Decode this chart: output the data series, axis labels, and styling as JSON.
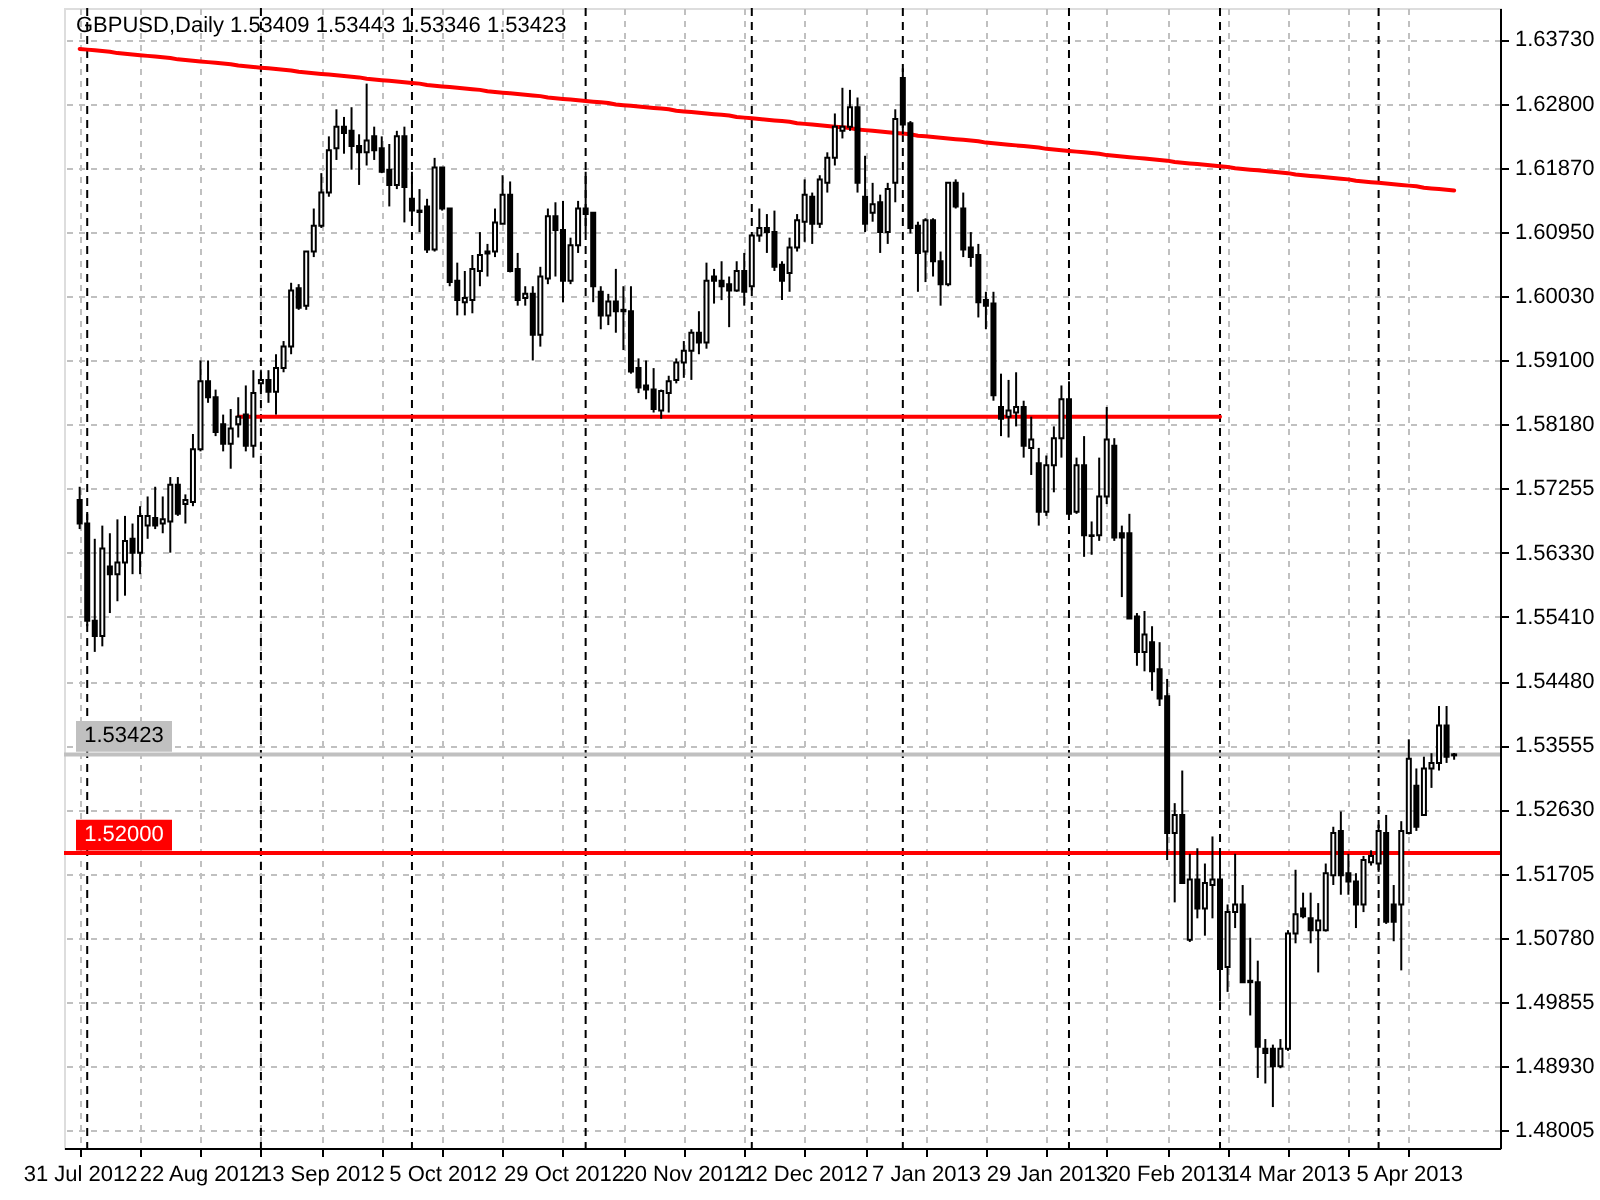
{
  "chart_data": {
    "type": "candlestick",
    "title": "GBPUSD,Daily 1.53409 1.53443 1.53346 1.53423",
    "categories": [
      "31 Jul 2012",
      null,
      null,
      null,
      null,
      null,
      null,
      null,
      null,
      null,
      null,
      null,
      null,
      null,
      null,
      null,
      "22 Aug 2012",
      null,
      null,
      null,
      null,
      null,
      null,
      null,
      null,
      null,
      null,
      null,
      null,
      null,
      null,
      null,
      "13 Sep 2012",
      null,
      null,
      null,
      null,
      null,
      null,
      null,
      null,
      null,
      null,
      null,
      null,
      null,
      null,
      null,
      "5 Oct 2012",
      null,
      null,
      null,
      null,
      null,
      null,
      null,
      null,
      null,
      null,
      null,
      null,
      null,
      null,
      null,
      "29 Oct 2012",
      null,
      null,
      null,
      null,
      null,
      null,
      null,
      null,
      null,
      null,
      null,
      null,
      null,
      null,
      null,
      "20 Nov 2012",
      null,
      null,
      null,
      null,
      null,
      null,
      null,
      null,
      null,
      null,
      null,
      null,
      null,
      null,
      null,
      "12 Dec 2012",
      null,
      null,
      null,
      null,
      null,
      null,
      null,
      null,
      null,
      null,
      null,
      null,
      null,
      null,
      null,
      "7 Jan 2013",
      null,
      null,
      null,
      null,
      null,
      null,
      null,
      null,
      null,
      null,
      null,
      null,
      null,
      null,
      null,
      "29 Jan 2013",
      null,
      null,
      null,
      null,
      null,
      null,
      null,
      null,
      null,
      null,
      null,
      null,
      null,
      null,
      null,
      "20 Feb 2013",
      null,
      null,
      null,
      null,
      null,
      null,
      null,
      null,
      null,
      null,
      null,
      null,
      null,
      null,
      null,
      "14 Mar 2013",
      null,
      null,
      null,
      null,
      null,
      null,
      null,
      null,
      null,
      null,
      null,
      null,
      null,
      null,
      null,
      "5 Apr 2013",
      null,
      null,
      null,
      null,
      null,
      null
    ],
    "ylim": [
      1.4775,
      1.6418
    ],
    "yticks": [
      1.48005,
      {
        "value": 1.4893,
        "label": "1.48930"
      },
      1.49855,
      {
        "value": 1.5078,
        "label": "1.50780"
      },
      1.51705,
      {
        "value": 1.5263,
        "label": "1.52630"
      },
      1.53555,
      {
        "value": 1.5448,
        "label": "1.54480"
      },
      {
        "value": 1.5541,
        "label": "1.55410"
      },
      {
        "value": 1.5633,
        "label": "1.56330"
      },
      1.57255,
      {
        "value": 1.5818,
        "label": "1.58180"
      },
      {
        "value": 1.591,
        "label": "1.59100"
      },
      {
        "value": 1.6003,
        "label": "1.60030"
      },
      {
        "value": 1.6095,
        "label": "1.60950"
      },
      {
        "value": 1.6187,
        "label": "1.61870"
      },
      {
        "value": 1.628,
        "label": "1.62800"
      },
      {
        "value": 1.6373,
        "label": "1.63730"
      }
    ],
    "grid": true,
    "ref_lines": [
      {
        "axis": "y",
        "value": 1.52,
        "label": "1.52000",
        "color": "#ff0000"
      },
      {
        "axis": "y",
        "value": 1.53423,
        "label": "1.53423",
        "color": "#c0c0c0"
      }
    ],
    "series": [
      {
        "type": "line",
        "color": "#ff0000",
        "values": [
          1.6359,
          1.6358,
          1.6357,
          1.6356,
          1.6355,
          1.6353,
          1.6352,
          1.6351,
          1.635,
          1.6349,
          1.6348,
          1.6347,
          1.6346,
          1.6344,
          1.6343,
          1.6342,
          1.6341,
          1.634,
          1.6339,
          1.6338,
          1.6337,
          1.6335,
          1.6334,
          1.6333,
          1.6332,
          1.6331,
          1.633,
          1.6329,
          1.6328,
          1.6326,
          1.6325,
          1.6324,
          1.6323,
          1.6322,
          1.6321,
          1.632,
          1.6319,
          1.6318,
          1.6316,
          1.6315,
          1.6314,
          1.6313,
          1.6312,
          1.6311,
          1.631,
          1.6309,
          1.6307,
          1.6306,
          1.6305,
          1.6304,
          1.6303,
          1.6302,
          1.6301,
          1.63,
          1.6298,
          1.6297,
          1.6296,
          1.6295,
          1.6294,
          1.6293,
          1.6292,
          1.6291,
          1.6289,
          1.6288,
          1.6287,
          1.6286,
          1.6285,
          1.6284,
          1.6283,
          1.6282,
          1.6281,
          1.6279,
          1.6278,
          1.6277,
          1.6276,
          1.6275,
          1.6274,
          1.6273,
          1.6272,
          1.627,
          1.6269,
          1.6268,
          1.6267,
          1.6266,
          1.6265,
          1.6264,
          1.6263,
          1.6261,
          1.626,
          1.6259,
          1.6258,
          1.6257,
          1.6256,
          1.6255,
          1.6254,
          1.6252,
          1.6251,
          1.625,
          1.6249,
          1.6248,
          1.6247,
          1.6246,
          1.6245,
          1.6243,
          1.6242,
          1.6241,
          1.624,
          1.6239,
          1.6238,
          1.6237,
          1.6236,
          1.6234,
          1.6233,
          1.6232,
          1.6231,
          1.623,
          1.6229,
          1.6228,
          1.6227,
          1.6226,
          1.6224,
          1.6223,
          1.6222,
          1.6221,
          1.622,
          1.6219,
          1.6218,
          1.6217,
          1.6215,
          1.6214,
          1.6213,
          1.6212,
          1.6211,
          1.621,
          1.6209,
          1.6208,
          1.6206,
          1.6205,
          1.6204,
          1.6203,
          1.6202,
          1.6201,
          1.62,
          1.6199,
          1.6198,
          1.6196,
          1.6195,
          1.6194,
          1.6193,
          1.6192,
          1.6191,
          1.619,
          1.6189,
          1.6187,
          1.6186,
          1.6185,
          1.6184,
          1.6183,
          1.6182,
          1.6181,
          1.618,
          1.6178,
          1.6177,
          1.6176,
          1.6175,
          1.6174,
          1.6173,
          1.6172,
          1.6171,
          1.6169,
          1.6168,
          1.6167,
          1.6166,
          1.6165,
          1.6164,
          1.6163,
          1.6162,
          1.6161,
          1.6159,
          1.6158,
          1.6157,
          1.6156,
          1.6155
        ]
      },
      {
        "type": "line",
        "color": "#ff0000",
        "values": [
          null,
          null,
          null,
          null,
          null,
          null,
          null,
          null,
          null,
          null,
          null,
          null,
          null,
          null,
          null,
          null,
          null,
          null,
          null,
          null,
          null,
          1.5829,
          1.5829,
          1.5829,
          1.5829,
          1.5829,
          1.5829,
          1.5829,
          1.5829,
          1.5829,
          1.5829,
          1.5829,
          1.5829,
          1.5829,
          1.5829,
          1.5829,
          1.5829,
          1.5829,
          1.5829,
          1.5829,
          1.5829,
          1.5829,
          1.5829,
          1.5829,
          1.5829,
          1.5829,
          1.5829,
          1.5829,
          1.5829,
          1.5829,
          1.5829,
          1.5829,
          1.5829,
          1.5829,
          1.5829,
          1.5829,
          1.5829,
          1.5829,
          1.5829,
          1.5829,
          1.5829,
          1.5829,
          1.5829,
          1.5829,
          1.5829,
          1.5829,
          1.5829,
          1.5829,
          1.5829,
          1.5829,
          1.5829,
          1.5829,
          1.5829,
          1.5829,
          1.5829,
          1.5829,
          1.5829,
          1.5829,
          1.5829,
          1.5829,
          1.5829,
          1.5829,
          1.5829,
          1.5829,
          1.5829,
          1.5829,
          1.5829,
          1.5829,
          1.5829,
          1.5829,
          1.5829,
          1.5829,
          1.5829,
          1.5829,
          1.5829,
          1.5829,
          1.5829,
          1.5829,
          1.5829,
          1.5829,
          1.5829,
          1.5829,
          1.5829,
          1.5829,
          1.5829,
          1.5829,
          1.5829,
          1.5829,
          1.5829,
          1.5829,
          1.5829,
          1.5829,
          1.5829,
          1.5829,
          1.5829,
          1.5829,
          1.5829,
          1.5829,
          1.5829,
          1.5829,
          1.5829,
          1.5829,
          1.5829,
          1.5829,
          1.5829,
          1.5829,
          1.5829,
          1.5829,
          1.5829,
          1.5829,
          1.5829,
          1.5829,
          1.5829,
          1.5829,
          1.5829,
          1.5829,
          1.5829,
          1.5829,
          1.5829,
          1.5829,
          1.5829,
          1.5829,
          1.5829,
          1.5829,
          1.5829,
          1.5829,
          1.5829,
          1.5829,
          1.5829,
          1.5829,
          1.5829,
          1.5829,
          null,
          null,
          null,
          null,
          null,
          null,
          null,
          null,
          null,
          null,
          null,
          null,
          null,
          null,
          null,
          null,
          null,
          null,
          null,
          null,
          null,
          null,
          null,
          null,
          null,
          null,
          null,
          null,
          null,
          null,
          null
        ]
      },
      {
        "color": "#000000",
        "ohlc": [
          [
            1.5709,
            1.5728,
            1.5667,
            1.5675
          ],
          [
            1.5675,
            1.5689,
            1.5527,
            1.5535
          ],
          [
            1.5535,
            1.5653,
            1.549,
            1.5513
          ],
          [
            1.5513,
            1.5672,
            1.5498,
            1.5639
          ],
          [
            1.5613,
            1.5661,
            1.5546,
            1.5602
          ],
          [
            1.5602,
            1.5681,
            1.5563,
            1.5619
          ],
          [
            1.5619,
            1.5686,
            1.5571,
            1.565
          ],
          [
            1.5653,
            1.5675,
            1.5602,
            1.5633
          ],
          [
            1.5633,
            1.57,
            1.5602,
            1.5686
          ],
          [
            1.5672,
            1.5714,
            1.5653,
            1.5686
          ],
          [
            1.5683,
            1.5728,
            1.5667,
            1.5672
          ],
          [
            1.5675,
            1.5714,
            1.5661,
            1.5681
          ],
          [
            1.5678,
            1.5742,
            1.5633,
            1.5731
          ],
          [
            1.5731,
            1.5742,
            1.5686,
            1.5689
          ],
          [
            1.5703,
            1.5717,
            1.5675,
            1.5709
          ],
          [
            1.5706,
            1.5804,
            1.57,
            1.5782
          ],
          [
            1.5782,
            1.591,
            1.5779,
            1.588
          ],
          [
            1.588,
            1.591,
            1.5849,
            1.5857
          ],
          [
            1.5857,
            1.5868,
            1.5801,
            1.5807
          ],
          [
            1.5818,
            1.5832,
            1.5779,
            1.579
          ],
          [
            1.579,
            1.584,
            1.5754,
            1.5812
          ],
          [
            1.5818,
            1.5857,
            1.5799,
            1.5829
          ],
          [
            1.5832,
            1.5874,
            1.5779,
            1.5787
          ],
          [
            1.5787,
            1.5896,
            1.577,
            1.5863
          ],
          [
            1.5877,
            1.5896,
            1.5865,
            1.5882
          ],
          [
            1.5882,
            1.5896,
            1.5849,
            1.5865
          ],
          [
            1.5865,
            1.5919,
            1.5832,
            1.5899
          ],
          [
            1.5899,
            1.5938,
            1.5893,
            1.593
          ],
          [
            1.593,
            1.6022,
            1.5919,
            1.6011
          ],
          [
            1.6014,
            1.602,
            1.5983,
            1.5986
          ],
          [
            1.5989,
            1.6067,
            1.5983,
            1.6067
          ],
          [
            1.6067,
            1.6129,
            1.6059,
            1.6104
          ],
          [
            1.6104,
            1.618,
            1.6101,
            1.6152
          ],
          [
            1.6152,
            1.6233,
            1.6146,
            1.6213
          ],
          [
            1.6216,
            1.6272,
            1.6199,
            1.6247
          ],
          [
            1.6247,
            1.6261,
            1.6208,
            1.6238
          ],
          [
            1.6241,
            1.6275,
            1.6185,
            1.6219
          ],
          [
            1.6219,
            1.6236,
            1.6163,
            1.621
          ],
          [
            1.621,
            1.6309,
            1.6191,
            1.6227
          ],
          [
            1.6233,
            1.6247,
            1.6199,
            1.6213
          ],
          [
            1.6216,
            1.6233,
            1.618,
            1.6182
          ],
          [
            1.6185,
            1.6222,
            1.6132,
            1.6163
          ],
          [
            1.6163,
            1.6241,
            1.6157,
            1.6233
          ],
          [
            1.6233,
            1.6247,
            1.6109,
            1.616
          ],
          [
            1.6143,
            1.6182,
            1.6107,
            1.6126
          ],
          [
            1.6126,
            1.6157,
            1.6095,
            1.6124
          ],
          [
            1.6132,
            1.6143,
            1.6065,
            1.607
          ],
          [
            1.607,
            1.6202,
            1.6067,
            1.6188
          ],
          [
            1.6188,
            1.6188,
            1.6126,
            1.6129
          ],
          [
            1.6129,
            1.6129,
            1.6017,
            1.6023
          ],
          [
            1.6025,
            1.6051,
            1.5975,
            1.5997
          ],
          [
            1.5994,
            1.6039,
            1.5975,
            1.6
          ],
          [
            1.5997,
            1.6062,
            1.5978,
            1.6042
          ],
          [
            1.6039,
            1.6095,
            1.6017,
            1.6062
          ],
          [
            1.6064,
            1.6078,
            1.6031,
            1.6067
          ],
          [
            1.6067,
            1.6129,
            1.6059,
            1.6109
          ],
          [
            1.6107,
            1.6177,
            1.6107,
            1.6149
          ],
          [
            1.6149,
            1.6168,
            1.6037,
            1.6039
          ],
          [
            1.6042,
            1.6065,
            1.5989,
            1.5997
          ],
          [
            1.6,
            1.6017,
            1.5989,
            1.6006
          ],
          [
            1.6006,
            1.6017,
            1.591,
            1.5947
          ],
          [
            1.5947,
            1.6045,
            1.593,
            1.6031
          ],
          [
            1.6028,
            1.6129,
            1.602,
            1.6118
          ],
          [
            1.6118,
            1.6138,
            1.6031,
            1.6098
          ],
          [
            1.6098,
            1.614,
            1.5994,
            1.6025
          ],
          [
            1.6025,
            1.6087,
            1.602,
            1.6076
          ],
          [
            1.6076,
            1.614,
            1.6065,
            1.6129
          ],
          [
            1.6129,
            1.6182,
            1.6095,
            1.6121
          ],
          [
            1.6123,
            1.6123,
            1.5994,
            1.6017
          ],
          [
            1.6009,
            1.6017,
            1.5955,
            1.5975
          ],
          [
            1.5975,
            1.6006,
            1.5961,
            1.5995
          ],
          [
            1.5995,
            1.6042,
            1.595,
            1.5981
          ],
          [
            1.5981,
            1.6017,
            1.5925,
            1.5983
          ],
          [
            1.5981,
            1.6017,
            1.5891,
            1.5894
          ],
          [
            1.5899,
            1.5913,
            1.5863,
            1.5871
          ],
          [
            1.5874,
            1.591,
            1.5854,
            1.5868
          ],
          [
            1.5868,
            1.5899,
            1.5835,
            1.584
          ],
          [
            1.5838,
            1.5868,
            1.5826,
            1.5866
          ],
          [
            1.5863,
            1.5888,
            1.5835,
            1.588
          ],
          [
            1.5882,
            1.5913,
            1.5877,
            1.5907
          ],
          [
            1.5907,
            1.5938,
            1.5885,
            1.5924
          ],
          [
            1.5924,
            1.5955,
            1.5882,
            1.595
          ],
          [
            1.595,
            1.5981,
            1.5919,
            1.5936
          ],
          [
            1.5936,
            1.6051,
            1.5927,
            1.6025
          ],
          [
            1.6031,
            1.6042,
            1.5992,
            1.6025
          ],
          [
            1.6025,
            1.6053,
            1.5997,
            1.6017
          ],
          [
            1.602,
            1.6031,
            1.5958,
            1.6011
          ],
          [
            1.6011,
            1.6053,
            1.6009,
            1.6039
          ],
          [
            1.6039,
            1.6065,
            1.5989,
            1.6009
          ],
          [
            1.6017,
            1.6092,
            1.6011,
            1.609
          ],
          [
            1.609,
            1.6129,
            1.6081,
            1.6101
          ],
          [
            1.6101,
            1.6121,
            1.6065,
            1.6095
          ],
          [
            1.6095,
            1.6126,
            1.6039,
            1.6045
          ],
          [
            1.6048,
            1.6053,
            1.5997,
            1.6025
          ],
          [
            1.6036,
            1.6087,
            1.6009,
            1.6073
          ],
          [
            1.6073,
            1.6121,
            1.6067,
            1.6112
          ],
          [
            1.611,
            1.6171,
            1.6081,
            1.6149
          ],
          [
            1.6146,
            1.6152,
            1.6078,
            1.6107
          ],
          [
            1.6107,
            1.6177,
            1.6101,
            1.6171
          ],
          [
            1.6166,
            1.621,
            1.6152,
            1.6202
          ],
          [
            1.6202,
            1.6266,
            1.6191,
            1.6247
          ],
          [
            1.6241,
            1.6303,
            1.623,
            1.6247
          ],
          [
            1.6247,
            1.63,
            1.6241,
            1.6275
          ],
          [
            1.6275,
            1.6289,
            1.6152,
            1.6166
          ],
          [
            1.6146,
            1.6205,
            1.6095,
            1.6107
          ],
          [
            1.6123,
            1.6166,
            1.611,
            1.6135
          ],
          [
            1.6138,
            1.6149,
            1.6065,
            1.6095
          ],
          [
            1.6095,
            1.6166,
            1.6078,
            1.6157
          ],
          [
            1.6166,
            1.6272,
            1.6138,
            1.6258
          ],
          [
            1.6317,
            1.6331,
            1.6236,
            1.625
          ],
          [
            1.6252,
            1.6255,
            1.6093,
            1.6101
          ],
          [
            1.6104,
            1.611,
            1.6009,
            1.6065
          ],
          [
            1.6067,
            1.6115,
            1.6023,
            1.6112
          ],
          [
            1.6112,
            1.6115,
            1.6031,
            1.6053
          ],
          [
            1.6053,
            1.6067,
            1.5989,
            1.602
          ],
          [
            1.602,
            1.6166,
            1.6017,
            1.6166
          ],
          [
            1.6166,
            1.6171,
            1.6129,
            1.6132
          ],
          [
            1.6129,
            1.6152,
            1.6059,
            1.607
          ],
          [
            1.6073,
            1.6095,
            1.6045,
            1.6059
          ],
          [
            1.6062,
            1.6078,
            1.5972,
            1.5994
          ],
          [
            1.5997,
            1.6009,
            1.5955,
            1.5989
          ],
          [
            1.5992,
            1.6009,
            1.5852,
            1.586
          ],
          [
            1.5843,
            1.5891,
            1.5801,
            1.5826
          ],
          [
            1.5829,
            1.5882,
            1.5799,
            1.5838
          ],
          [
            1.5835,
            1.5893,
            1.5815,
            1.5843
          ],
          [
            1.5843,
            1.5852,
            1.577,
            1.5787
          ],
          [
            1.5784,
            1.5829,
            1.5745,
            1.5796
          ],
          [
            1.5762,
            1.5784,
            1.5672,
            1.5692
          ],
          [
            1.5692,
            1.5773,
            1.5686,
            1.5759
          ],
          [
            1.5759,
            1.5815,
            1.572,
            1.5798
          ],
          [
            1.5798,
            1.5874,
            1.577,
            1.5854
          ],
          [
            1.5854,
            1.588,
            1.5686,
            1.5689
          ],
          [
            1.5692,
            1.577,
            1.5689,
            1.5759
          ],
          [
            1.5759,
            1.5801,
            1.5627,
            1.5658
          ],
          [
            1.5658,
            1.5678,
            1.563,
            1.5657
          ],
          [
            1.5658,
            1.577,
            1.565,
            1.5714
          ],
          [
            1.5714,
            1.5843,
            1.5703,
            1.5796
          ],
          [
            1.5787,
            1.5798,
            1.565,
            1.5655
          ],
          [
            1.5661,
            1.5672,
            1.5569,
            1.5655
          ],
          [
            1.5661,
            1.5689,
            1.5538,
            1.5538
          ],
          [
            1.5541,
            1.5546,
            1.547,
            1.549
          ],
          [
            1.549,
            1.5549,
            1.5462,
            1.5515
          ],
          [
            1.5504,
            1.5527,
            1.5434,
            1.5462
          ],
          [
            1.5465,
            1.5504,
            1.5412,
            1.5423
          ],
          [
            1.5426,
            1.5451,
            1.519,
            1.5229
          ],
          [
            1.5229,
            1.5272,
            1.5129,
            1.5255
          ],
          [
            1.5255,
            1.5319,
            1.5157,
            1.5157
          ],
          [
            1.5075,
            1.5199,
            1.5072,
            1.5162
          ],
          [
            1.5162,
            1.5207,
            1.5106,
            1.512
          ],
          [
            1.512,
            1.5185,
            1.5081,
            1.5157
          ],
          [
            1.5154,
            1.5224,
            1.5106,
            1.5162
          ],
          [
            1.5162,
            1.5204,
            1.4986,
            1.5033
          ],
          [
            1.5036,
            1.5126,
            1.5,
            1.5115
          ],
          [
            1.5115,
            1.5199,
            1.5092,
            1.5126
          ],
          [
            1.5126,
            1.5154,
            1.5014,
            1.5014
          ],
          [
            1.5016,
            1.5078,
            1.4966,
            1.5014
          ],
          [
            1.5014,
            1.5045,
            1.4876,
            1.4921
          ],
          [
            1.4918,
            1.4932,
            1.4868,
            1.4912
          ],
          [
            1.4918,
            1.4924,
            1.4834,
            1.4893
          ],
          [
            1.4893,
            1.4932,
            1.489,
            1.4918
          ],
          [
            1.4918,
            1.5089,
            1.4915,
            1.5084
          ],
          [
            1.5084,
            1.5176,
            1.507,
            1.5112
          ],
          [
            1.512,
            1.5143,
            1.5106,
            1.5109
          ],
          [
            1.5106,
            1.5143,
            1.507,
            1.5089
          ],
          [
            1.5089,
            1.5128,
            1.5028,
            1.5103
          ],
          [
            1.5089,
            1.5185,
            1.5087,
            1.5171
          ],
          [
            1.5168,
            1.5238,
            1.5154,
            1.5229
          ],
          [
            1.5232,
            1.526,
            1.514,
            1.5168
          ],
          [
            1.5171,
            1.5199,
            1.514,
            1.5159
          ],
          [
            1.5159,
            1.5171,
            1.5092,
            1.5126
          ],
          [
            1.5126,
            1.5196,
            1.5115,
            1.519
          ],
          [
            1.5187,
            1.5204,
            1.5182,
            1.5196
          ],
          [
            1.5185,
            1.5241,
            1.5173,
            1.5232
          ],
          [
            1.5229,
            1.5255,
            1.5098,
            1.5101
          ],
          [
            1.5126,
            1.5154,
            1.5073,
            1.5101
          ],
          [
            1.5126,
            1.5246,
            1.5031,
            1.5232
          ],
          [
            1.5229,
            1.5364,
            1.5227,
            1.5336
          ],
          [
            1.5297,
            1.5322,
            1.5232,
            1.5238
          ],
          [
            1.5255,
            1.5339,
            1.5255,
            1.5322
          ],
          [
            1.5322,
            1.5344,
            1.5294,
            1.533
          ],
          [
            1.533,
            1.5412,
            1.5319,
            1.5384
          ],
          [
            1.5384,
            1.5412,
            1.533,
            1.5339
          ],
          [
            1.53409,
            1.53443,
            1.53346,
            1.53423
          ]
        ]
      }
    ]
  }
}
